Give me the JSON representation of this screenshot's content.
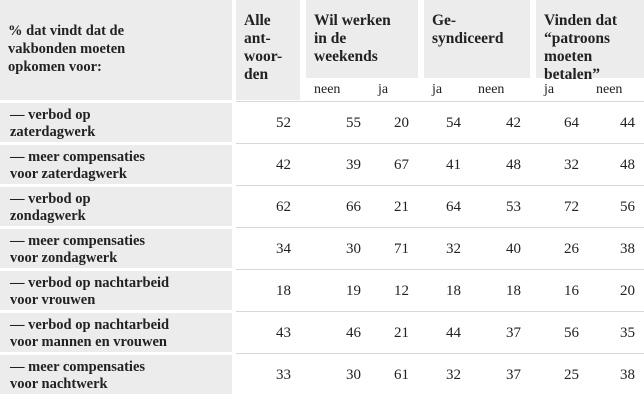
{
  "table": {
    "corner": [
      "% dat vindt dat de",
      "vakbonden moeten",
      "opkomen voor:"
    ],
    "columns": [
      {
        "label": [
          "Alle",
          "ant-",
          "woor-",
          "den"
        ]
      },
      {
        "label": [
          "Wil werken",
          "in de",
          "weekends"
        ],
        "sub": [
          "neen",
          "ja"
        ]
      },
      {
        "label": [
          "Ge-",
          "syndiceerd"
        ],
        "sub": [
          "ja",
          "neen"
        ]
      },
      {
        "label": [
          "Vinden dat",
          "“patroons",
          "moeten",
          "betalen”"
        ],
        "sub": [
          "ja",
          "neen"
        ]
      }
    ],
    "rows": [
      {
        "label": [
          "— verbod op",
          "zaterdagwerk"
        ],
        "values": [
          52,
          55,
          20,
          54,
          42,
          64,
          44
        ]
      },
      {
        "label": [
          "— meer compensaties",
          "voor zaterdagwerk"
        ],
        "values": [
          42,
          39,
          67,
          41,
          48,
          32,
          48
        ]
      },
      {
        "label": [
          "— verbod op",
          "zondagwerk"
        ],
        "values": [
          62,
          66,
          21,
          64,
          53,
          72,
          56
        ]
      },
      {
        "label": [
          "— meer compensaties",
          "voor zondagwerk"
        ],
        "values": [
          34,
          30,
          71,
          32,
          40,
          26,
          38
        ]
      },
      {
        "label": [
          "— verbod op nachtarbeid",
          "voor vrouwen"
        ],
        "values": [
          18,
          19,
          12,
          18,
          18,
          16,
          20
        ]
      },
      {
        "label": [
          "— verbod op nachtarbeid",
          "voor mannen en vrouwen"
        ],
        "values": [
          43,
          46,
          21,
          44,
          37,
          56,
          35
        ]
      },
      {
        "label": [
          "— meer compensaties",
          "voor nachtwerk"
        ],
        "values": [
          33,
          30,
          61,
          32,
          37,
          25,
          38
        ]
      }
    ]
  }
}
